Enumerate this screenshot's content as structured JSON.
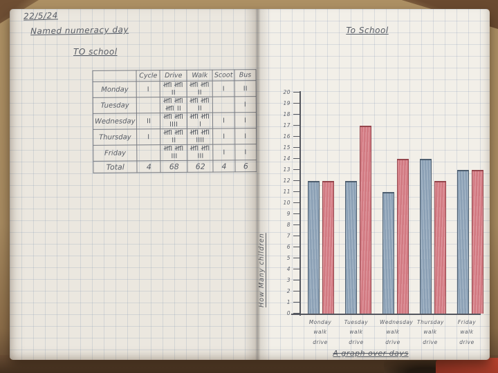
{
  "left_page": {
    "date": "22/5/24",
    "heading": "Named numeracy day",
    "subheading": "TO school",
    "table": {
      "columns": [
        "",
        "Cycle",
        "Drive",
        "Walk",
        "Scoot",
        "Bus"
      ],
      "rows": [
        {
          "label": "Monday",
          "tallies": [
            1,
            12,
            12,
            1,
            2
          ]
        },
        {
          "label": "Tuesday",
          "tallies": [
            0,
            17,
            12,
            0,
            1
          ]
        },
        {
          "label": "Wednesday",
          "tallies": [
            2,
            14,
            11,
            1,
            1
          ]
        },
        {
          "label": "Thursday",
          "tallies": [
            1,
            12,
            14,
            1,
            1
          ]
        },
        {
          "label": "Friday",
          "tallies": [
            0,
            13,
            13,
            1,
            1
          ]
        }
      ],
      "total_row": {
        "label": "Total",
        "values": [
          "4",
          "68",
          "62",
          "4",
          "6"
        ]
      }
    }
  },
  "chart_data": {
    "type": "bar",
    "title": "To School",
    "categories": [
      "Monday",
      "Tuesday",
      "Wednesday",
      "Thursday",
      "Friday"
    ],
    "series": [
      {
        "name": "walk",
        "color": "#96aabd",
        "values": [
          12,
          12,
          11,
          14,
          13
        ]
      },
      {
        "name": "drive",
        "color": "#d8828a",
        "values": [
          12,
          17,
          14,
          12,
          13
        ]
      }
    ],
    "category_sublabel": "walk drive",
    "ylabel": "How Many children",
    "ylim": [
      0,
      20
    ],
    "ytick_step": 1,
    "grid": true,
    "legend": "none",
    "caption": "A graph over days"
  }
}
